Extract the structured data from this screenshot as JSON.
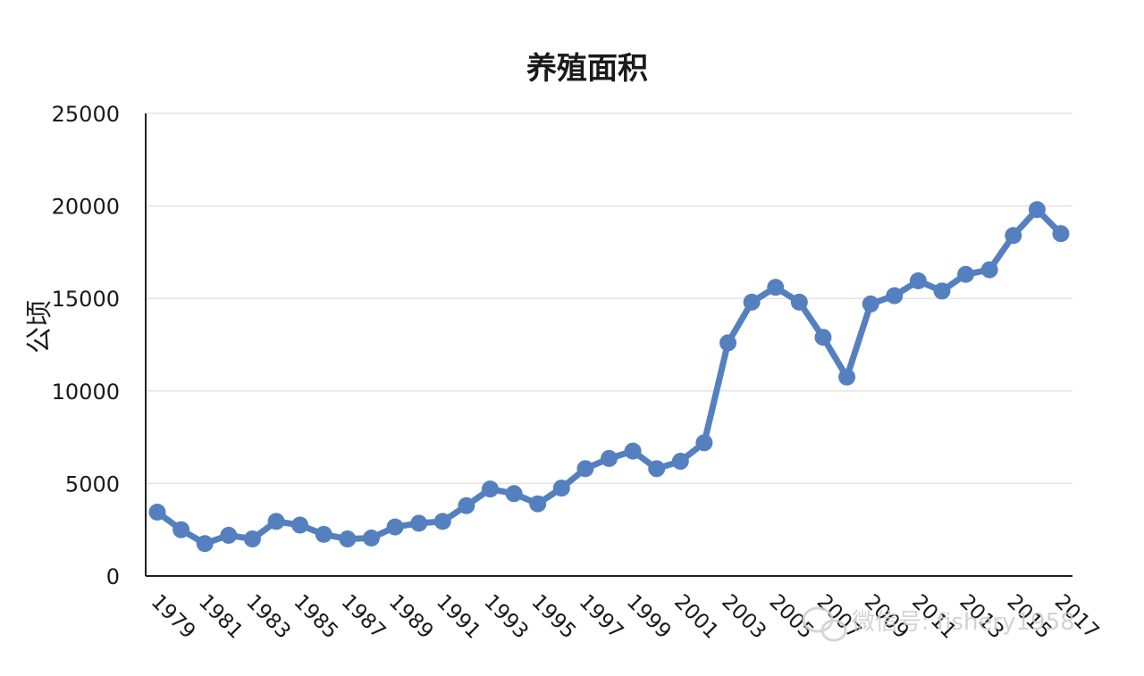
{
  "chart_data": {
    "type": "line",
    "title": "养殖面积",
    "xlabel": "",
    "ylabel": "公顷",
    "ylim": [
      0,
      25000
    ],
    "yticks": [
      0,
      5000,
      10000,
      15000,
      20000,
      25000
    ],
    "grid": true,
    "legend": "none",
    "color": "#5580c0",
    "x_labels": [
      "1979",
      "1981",
      "1983",
      "1985",
      "1987",
      "1989",
      "1991",
      "1993",
      "1995",
      "1997",
      "1999",
      "2001",
      "2003",
      "2005",
      "2007",
      "2009",
      "2011",
      "2013",
      "2015",
      "2017"
    ],
    "x": [
      1979,
      1980,
      1981,
      1982,
      1983,
      1984,
      1985,
      1986,
      1987,
      1988,
      1989,
      1990,
      1991,
      1992,
      1993,
      1994,
      1995,
      1996,
      1997,
      1998,
      1999,
      2000,
      2001,
      2002,
      2003,
      2004,
      2005,
      2006,
      2007,
      2008,
      2009,
      2010,
      2011,
      2012,
      2013,
      2014,
      2015,
      2016,
      2017
    ],
    "series": [
      {
        "values": [
          3450,
          2500,
          1750,
          2200,
          2000,
          2950,
          2750,
          2250,
          2000,
          2050,
          2650,
          2850,
          2950,
          3800,
          4700,
          4450,
          3900,
          4750,
          5800,
          6350,
          6750,
          5800,
          6200,
          7200,
          12600,
          14800,
          15600,
          14800,
          12900,
          10750,
          14700,
          15150,
          15950,
          15400,
          16300,
          16550,
          18400,
          19800,
          18500
        ]
      }
    ]
  },
  "watermark": {
    "text": "微信号: fishery1958",
    "icon": "wechat-icon"
  }
}
